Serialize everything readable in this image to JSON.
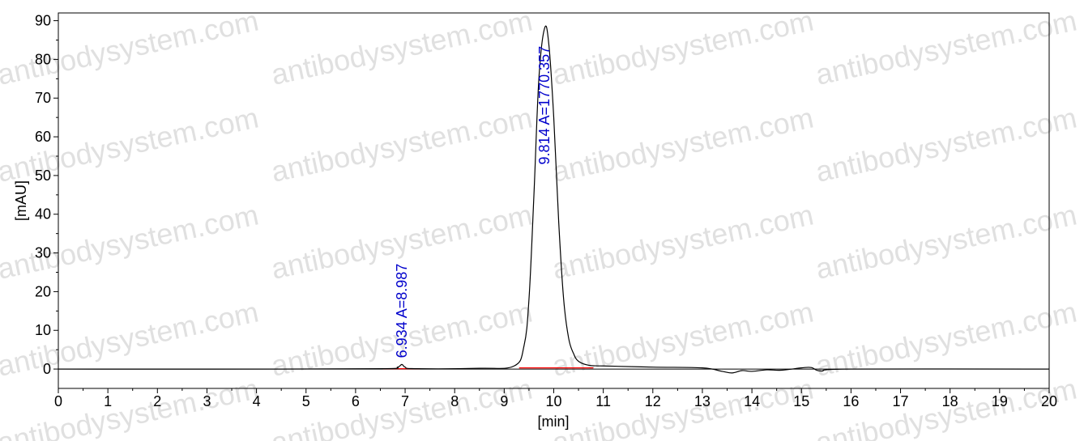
{
  "chart_data": {
    "type": "line",
    "title": "",
    "xlabel": "[min]",
    "ylabel": "[mAU]",
    "xlim": [
      0,
      20
    ],
    "ylim": [
      -5,
      92
    ],
    "x_ticks": [
      "0",
      "1",
      "2",
      "3",
      "4",
      "5",
      "6",
      "7",
      "8",
      "9",
      "10",
      "11",
      "12",
      "13",
      "14",
      "15",
      "16",
      "17",
      "18",
      "19",
      "20"
    ],
    "y_ticks": [
      "0",
      "10",
      "20",
      "30",
      "40",
      "50",
      "60",
      "70",
      "80",
      "90"
    ],
    "grid": false,
    "series": [
      {
        "color": "#000000",
        "x": [
          0,
          4.5,
          6.6,
          6.85,
          6.934,
          7.0,
          7.2,
          8.5,
          9.2,
          9.4,
          9.5,
          9.6,
          9.7,
          9.814,
          9.9,
          10.0,
          10.1,
          10.2,
          10.3,
          10.4,
          10.5,
          10.7,
          11.0,
          12.0,
          13.0,
          13.4,
          13.6,
          13.8,
          14.0,
          14.3,
          14.6,
          15.0,
          15.2,
          15.4,
          16.0,
          20.0
        ],
        "y": [
          0,
          0,
          0.1,
          0.5,
          1.2,
          0.5,
          0.1,
          0.2,
          0.8,
          6,
          18,
          45,
          75,
          88,
          84,
          65,
          38,
          18,
          8,
          4,
          2,
          1,
          0.8,
          0.5,
          0.3,
          -0.6,
          -1.0,
          -0.4,
          -0.6,
          -0.2,
          -0.3,
          0.3,
          0.4,
          -0.5,
          0,
          0
        ]
      }
    ],
    "baselines": [
      {
        "color": "#ff0000",
        "x": [
          6.55,
          7.3
        ],
        "y": [
          0.1,
          0.1
        ]
      },
      {
        "color": "#ff0000",
        "x": [
          9.3,
          10.8
        ],
        "y": [
          0.3,
          0.3
        ]
      }
    ],
    "peaks": [
      {
        "x": 6.934,
        "y": 1.2,
        "label": "6.934 A=8.987"
      },
      {
        "x": 9.814,
        "y": 88,
        "label": "9.814 A=1770.357"
      }
    ],
    "annotation_color": "#0000cc",
    "watermark": "antibodysystem.com"
  }
}
